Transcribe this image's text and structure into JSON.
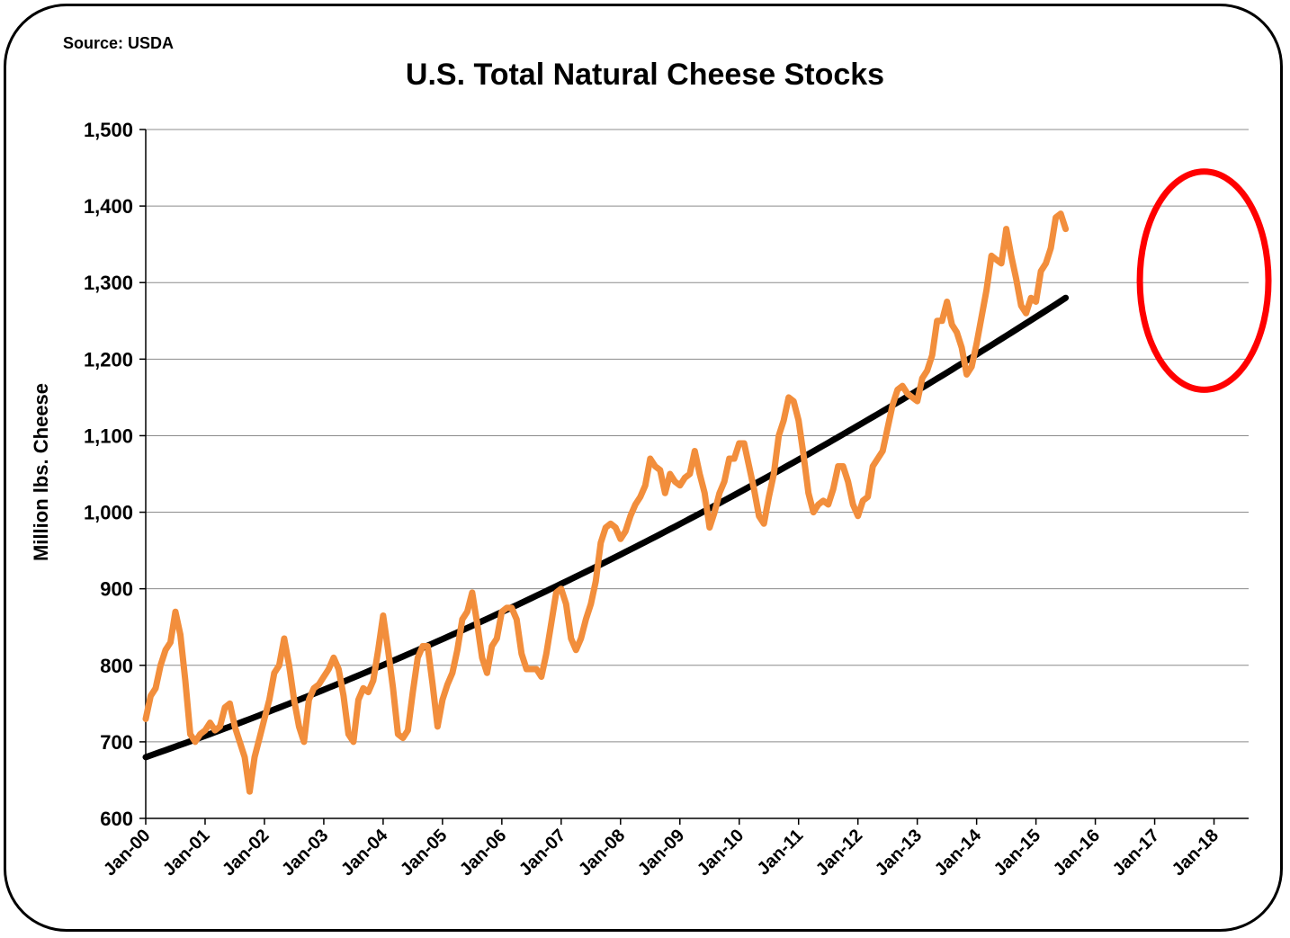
{
  "source_note": "Source: USDA",
  "chart_data": {
    "type": "line",
    "title": "U.S. Total Natural Cheese Stocks",
    "ylabel": "Million lbs. Cheese",
    "xlabel": "",
    "ylim": [
      600,
      1500
    ],
    "yticks": [
      600,
      700,
      800,
      900,
      1000,
      1100,
      1200,
      1300,
      1400,
      1500
    ],
    "ytick_labels": [
      "600",
      "700",
      "800",
      "900",
      "1,000",
      "1,100",
      "1,200",
      "1,300",
      "1,400",
      "1,500"
    ],
    "xticks": [
      "Jan-00",
      "Jan-01",
      "Jan-02",
      "Jan-03",
      "Jan-04",
      "Jan-05",
      "Jan-06",
      "Jan-07",
      "Jan-08",
      "Jan-09",
      "Jan-10",
      "Jan-11",
      "Jan-12",
      "Jan-13",
      "Jan-14",
      "Jan-15",
      "Jan-16",
      "Jan-17",
      "Jan-18"
    ],
    "grid": "horizontal",
    "series": [
      {
        "color": "#F28E3C",
        "x_start": "Jan-00",
        "frequency": "monthly",
        "values": [
          730,
          760,
          770,
          800,
          820,
          830,
          870,
          840,
          780,
          710,
          700,
          710,
          715,
          725,
          715,
          720,
          745,
          750,
          720,
          700,
          680,
          635,
          680,
          705,
          730,
          755,
          790,
          800,
          835,
          800,
          755,
          720,
          700,
          755,
          770,
          775,
          785,
          795,
          810,
          795,
          760,
          710,
          700,
          755,
          770,
          765,
          780,
          820,
          865,
          820,
          770,
          710,
          705,
          715,
          765,
          810,
          825,
          825,
          775,
          720,
          755,
          775,
          790,
          820,
          860,
          870,
          895,
          855,
          810,
          790,
          825,
          835,
          870,
          875,
          875,
          860,
          815,
          795,
          795,
          795,
          785,
          815,
          855,
          895,
          900,
          880,
          835,
          820,
          835,
          860,
          880,
          910,
          960,
          980,
          985,
          980,
          965,
          975,
          995,
          1010,
          1020,
          1035,
          1070,
          1060,
          1055,
          1025,
          1050,
          1040,
          1035,
          1045,
          1050,
          1080,
          1050,
          1025,
          980,
          1000,
          1025,
          1040,
          1070,
          1070,
          1090,
          1090,
          1060,
          1030,
          995,
          985,
          1020,
          1050,
          1100,
          1120,
          1150,
          1145,
          1120,
          1075,
          1025,
          1000,
          1010,
          1015,
          1010,
          1030,
          1060,
          1060,
          1040,
          1010,
          995,
          1015,
          1020,
          1060,
          1070,
          1080,
          1110,
          1140,
          1160,
          1165,
          1155,
          1150,
          1145,
          1175,
          1185,
          1205,
          1250,
          1250,
          1275,
          1245,
          1235,
          1215,
          1180,
          1190,
          1220,
          1255,
          1290,
          1335,
          1330,
          1325,
          1370,
          1335,
          1305,
          1270,
          1260,
          1280,
          1275,
          1315,
          1325,
          1345,
          1385,
          1390,
          1370
        ]
      },
      {
        "color": "#000000",
        "x_start": "Jan-00",
        "frequency": "monthly",
        "values_quadratic_trend": [
          680,
          1280
        ]
      }
    ],
    "annotations": [
      {
        "type": "ellipse",
        "color": "#FF0000",
        "x_range": [
          "Oct-16",
          "Dec-18"
        ],
        "y_range": [
          1160,
          1445
        ]
      }
    ]
  }
}
